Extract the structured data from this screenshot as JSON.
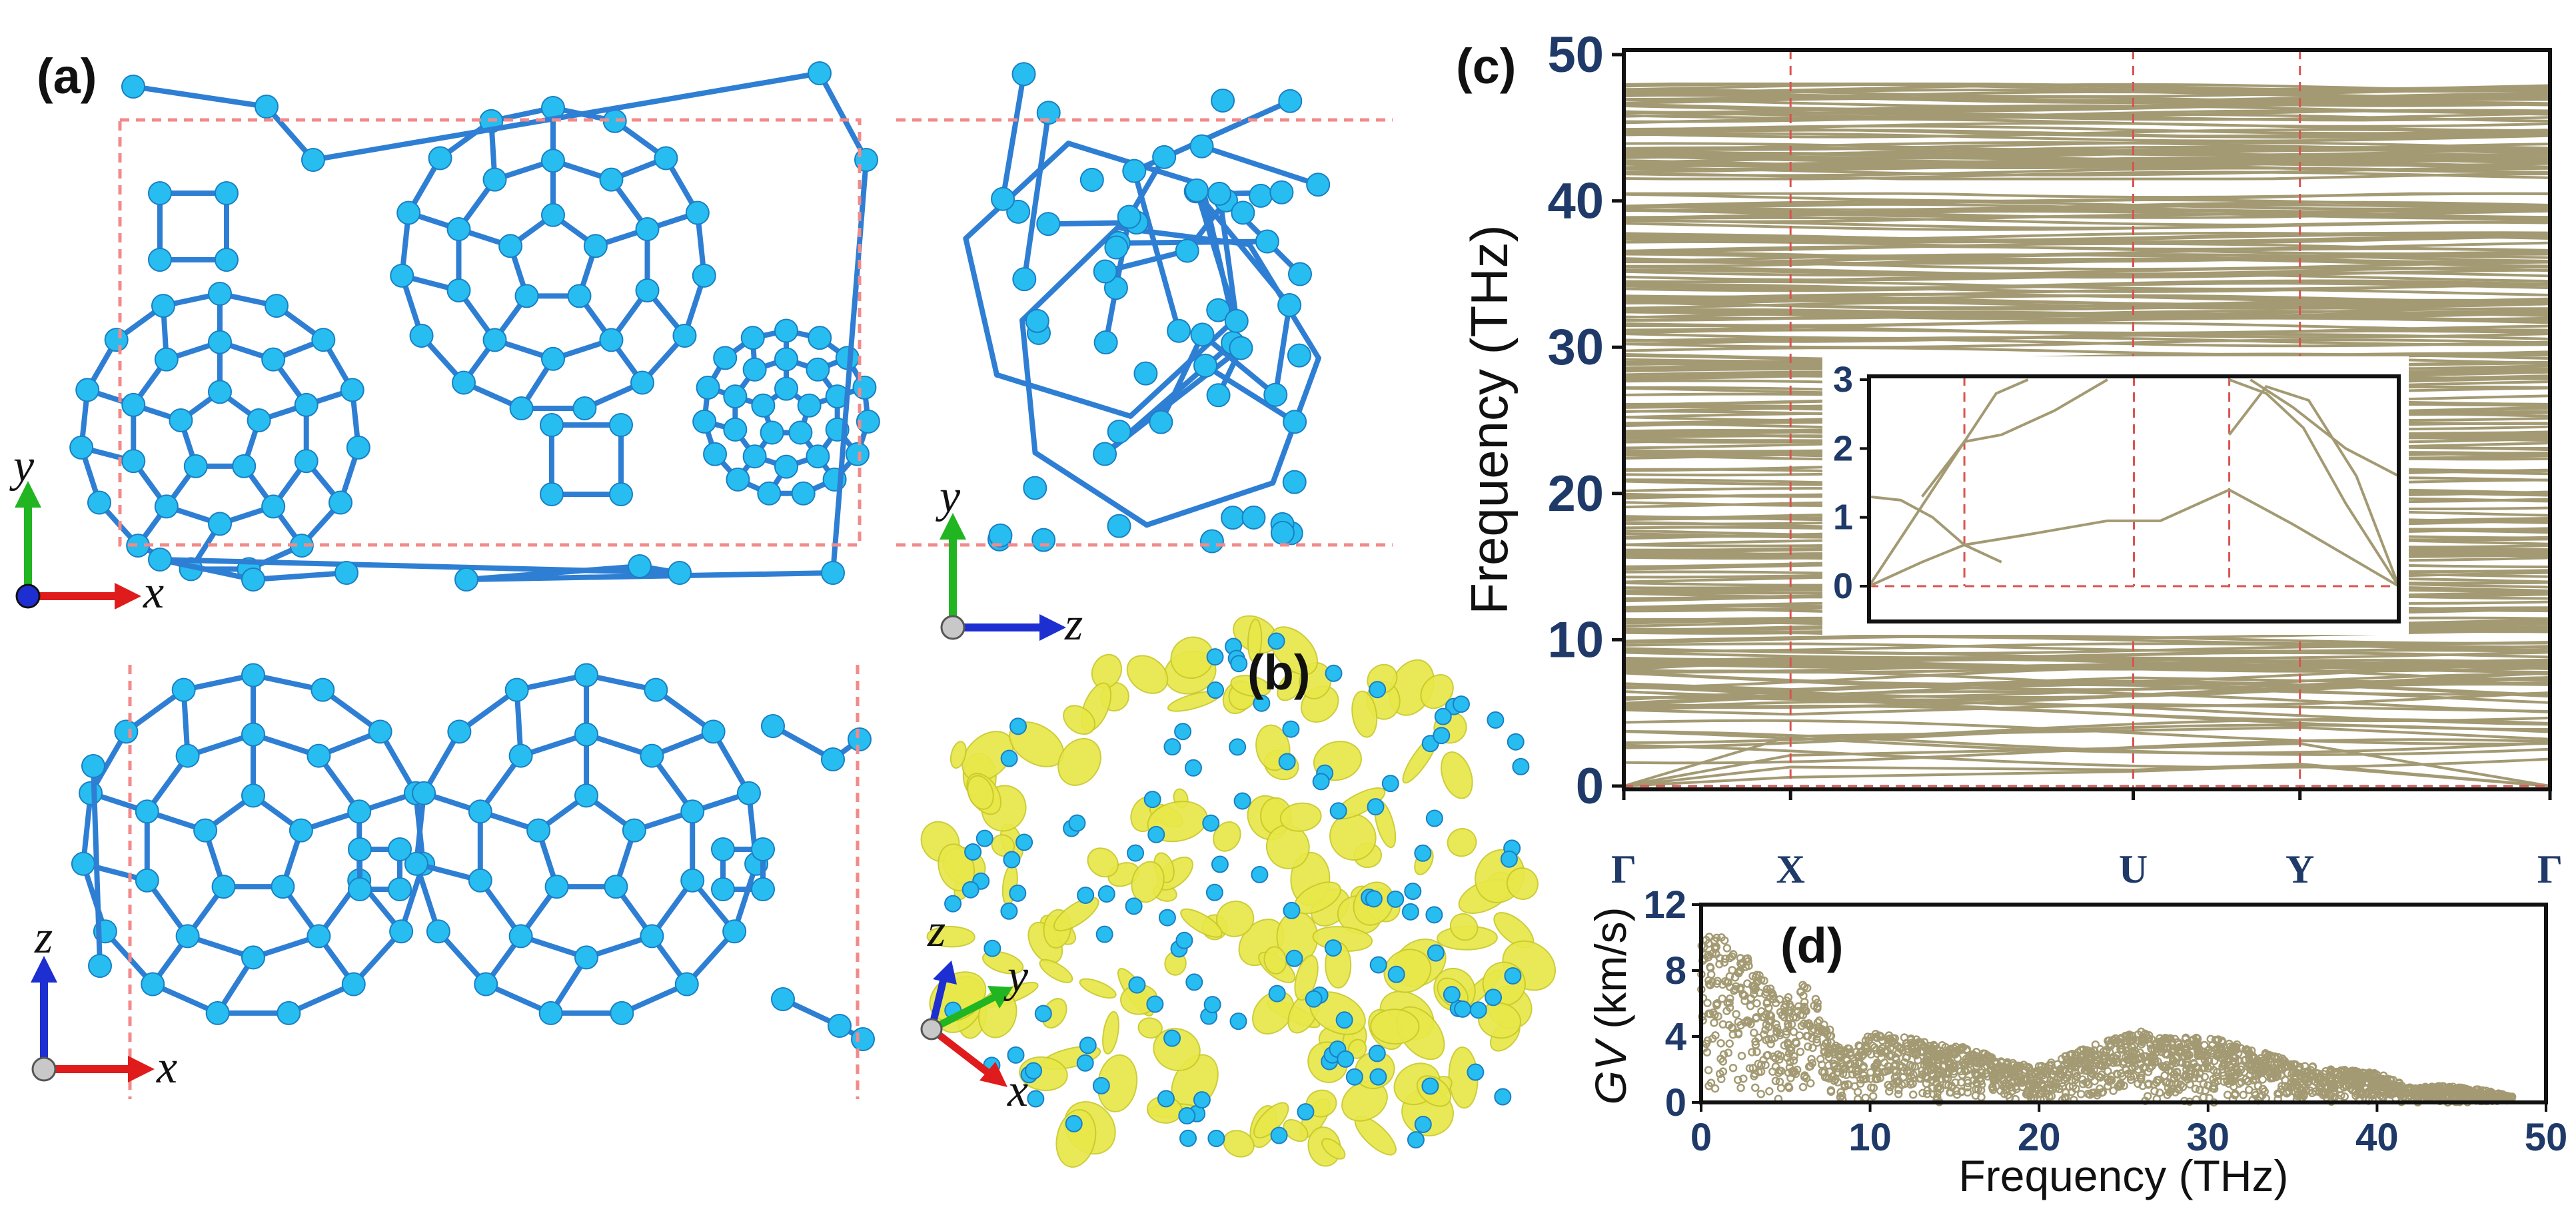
{
  "figure": {
    "panel_labels": {
      "a": "(a)",
      "b": "(b)",
      "c": "(c)",
      "d": "(d)"
    },
    "colors": {
      "atom": "#27bdf0",
      "bond": "#2e7fd4",
      "unit_cell": "#f28a8a",
      "band": "#a39a73",
      "isosurface": "#e8e84a",
      "x_arrow": "#e01b1b",
      "y_arrow": "#22b522",
      "z_arrow": "#1d2fd1",
      "tick_text": "#1f3a68"
    },
    "axes_triads": [
      {
        "panel": "a-top-left",
        "horizontal": "x",
        "vertical": "y"
      },
      {
        "panel": "a-top-right",
        "horizontal": "z",
        "vertical": "y"
      },
      {
        "panel": "a-bottom",
        "horizontal": "x",
        "vertical": "z"
      },
      {
        "panel": "b",
        "labels": [
          "z",
          "y",
          "x"
        ]
      }
    ]
  },
  "chart_data": [
    {
      "panel": "c",
      "type": "line",
      "ylabel": "Frequency (THz)",
      "xlabel": "",
      "ylim": [
        0,
        50
      ],
      "yticks": [
        0,
        10,
        20,
        30,
        40,
        50
      ],
      "kpoints": [
        "Γ",
        "X",
        "U",
        "Y",
        "Γ"
      ],
      "kpoint_positions": [
        0,
        0.18,
        0.55,
        0.73,
        1.0
      ],
      "dense_band_regions_THz": [
        [
          0,
          40.5
        ],
        [
          41.5,
          48
        ]
      ],
      "gap_THz": [
        40.5,
        41.5
      ],
      "series": [
        {
          "values": [
            0,
            0.6,
            1.0,
            1.4,
            0
          ]
        },
        {
          "values": [
            0,
            1.3,
            1.1,
            1.5,
            0
          ]
        },
        {
          "values": [
            0,
            2.1,
            2.6,
            2.9,
            0
          ]
        },
        {
          "values": [
            0,
            3.4,
            3.8,
            4.0,
            3.2
          ]
        },
        {
          "values": [
            5.2,
            4.9,
            5.6,
            5.4,
            5.1
          ]
        },
        {
          "values": [
            7.0,
            6.6,
            7.4,
            7.2,
            7.0
          ]
        }
      ],
      "inset": {
        "type": "line",
        "ylim": [
          0,
          3
        ],
        "yticks": [
          0,
          1,
          2,
          3
        ],
        "kpoint_positions": [
          0,
          0.18,
          0.5,
          0.68,
          1.0
        ],
        "series": [
          {
            "x": [
              0,
              0.1,
              0.18,
              0.3,
              0.45,
              0.55,
              0.68,
              0.8,
              1.0
            ],
            "values": [
              0,
              0.35,
              0.6,
              0.75,
              0.95,
              0.95,
              1.4,
              0.9,
              0
            ]
          },
          {
            "x": [
              0,
              0.06,
              0.12,
              0.18,
              0.25
            ],
            "values": [
              1.3,
              1.25,
              1.0,
              0.6,
              0.35
            ]
          },
          {
            "x": [
              0,
              0.18,
              0.25,
              0.35,
              0.45
            ],
            "values": [
              0,
              2.1,
              2.2,
              2.55,
              3.0
            ]
          },
          {
            "x": [
              0.1,
              0.18,
              0.24,
              0.3
            ],
            "values": [
              1.3,
              2.1,
              2.8,
              3.0
            ]
          },
          {
            "x": [
              0.68,
              0.75,
              0.82,
              0.9,
              1.0
            ],
            "values": [
              3.0,
              2.8,
              2.3,
              1.2,
              0
            ]
          },
          {
            "x": [
              0.68,
              0.75,
              0.83,
              0.92,
              1.0
            ],
            "values": [
              2.2,
              2.9,
              2.7,
              1.6,
              0
            ]
          },
          {
            "x": [
              0.72,
              0.8,
              0.9,
              1.0
            ],
            "values": [
              3.0,
              2.6,
              2.0,
              1.6
            ]
          }
        ]
      }
    },
    {
      "panel": "d",
      "type": "scatter",
      "xlabel": "Frequency (THz)",
      "ylabel": "GV (km/s)",
      "ylabel_italic_part": "GV",
      "ylabel_rest": " (km/s)",
      "xlim": [
        0,
        50
      ],
      "ylim": [
        0,
        12
      ],
      "xticks": [
        0,
        10,
        20,
        30,
        40,
        50
      ],
      "yticks": [
        0,
        4,
        8,
        12
      ],
      "envelope": {
        "x": [
          0,
          1,
          2,
          3,
          4,
          5,
          6,
          7,
          8,
          9,
          10,
          12,
          14,
          16,
          18,
          20,
          22,
          24,
          26,
          28,
          30,
          32,
          34,
          36,
          38,
          40,
          42,
          44,
          46,
          48
        ],
        "values": [
          10.5,
          10.2,
          9.5,
          8.5,
          7.0,
          6.2,
          7.3,
          6.0,
          3.5,
          3.2,
          4.2,
          4.0,
          3.5,
          3.3,
          2.5,
          2.2,
          3.0,
          3.8,
          4.3,
          3.9,
          4.0,
          3.5,
          2.8,
          2.2,
          2.0,
          1.8,
          0.9,
          1.0,
          0.8,
          0.4
        ]
      }
    }
  ]
}
